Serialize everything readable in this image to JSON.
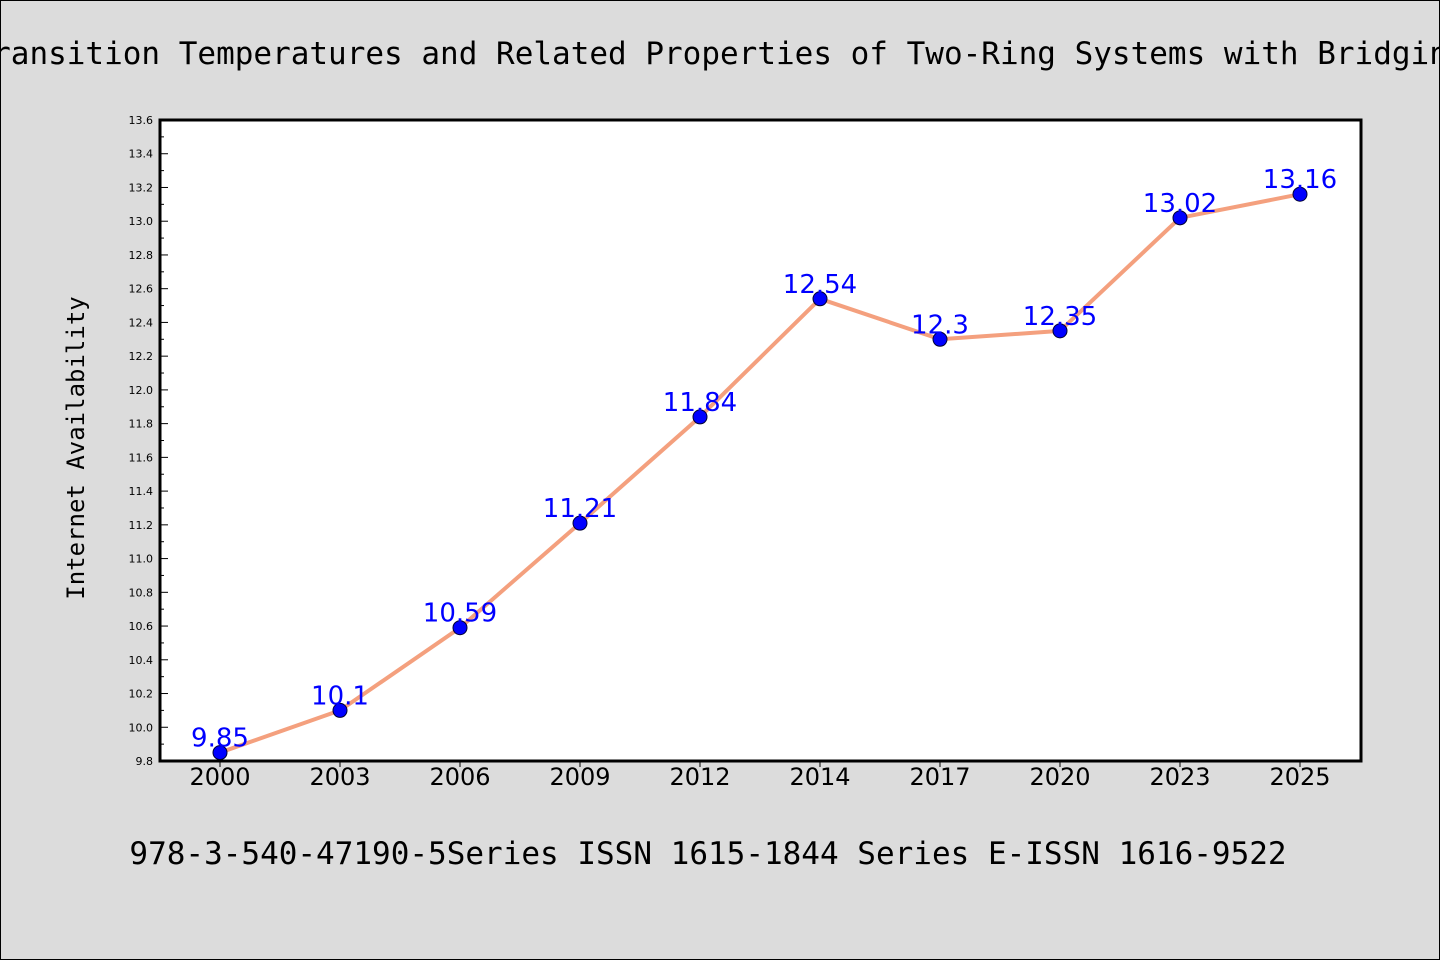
{
  "colors": {
    "background": "#dcdcdc",
    "plot_background": "#ffffff",
    "line": "#f4a07e",
    "marker": "#0000ff",
    "data_label": "#0000ff"
  },
  "footer_text": "978-3-540-47190-5Series ISSN 1615-1844 Series E-ISSN 1616-9522",
  "chart_data": {
    "type": "line",
    "title": "Transition Temperatures and Related Properties of Two-Ring Systems with Bridging",
    "xlabel": "",
    "ylabel": "Internet Availability",
    "categories": [
      "2000",
      "2003",
      "2006",
      "2009",
      "2012",
      "2014",
      "2017",
      "2020",
      "2023",
      "2025"
    ],
    "series": [
      {
        "values": [
          9.85,
          10.1,
          10.59,
          11.21,
          11.84,
          12.54,
          12.3,
          12.35,
          13.02,
          13.16
        ],
        "labels": [
          "9.85",
          "10.1",
          "10.59",
          "11.21",
          "11.84",
          "12.54",
          "12.3",
          "12.35",
          "13.02",
          "13.16"
        ]
      }
    ],
    "ylim": [
      9.8,
      13.6
    ],
    "yticks": [
      "9.8",
      "10.0",
      "10.2",
      "10.4",
      "10.6",
      "10.8",
      "11.0",
      "11.2",
      "11.4",
      "11.6",
      "11.8",
      "12.0",
      "12.2",
      "12.4",
      "12.6",
      "12.8",
      "13.0",
      "13.2",
      "13.4",
      "13.6"
    ],
    "grid": false,
    "legend": "none"
  }
}
